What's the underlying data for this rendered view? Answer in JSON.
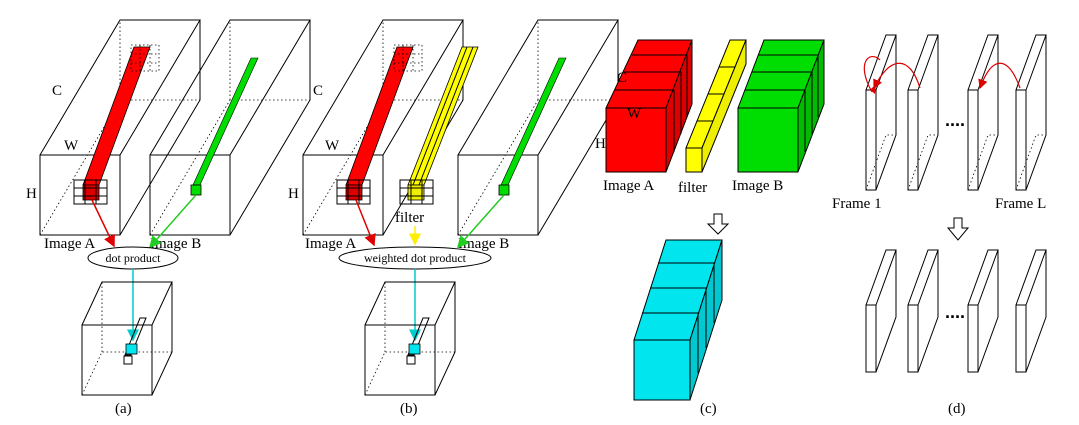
{
  "panel_a": {
    "label_c": "C",
    "label_w": "W",
    "label_h": "H",
    "image_a": "Image A",
    "image_b": "Image B",
    "operation": "dot product",
    "caption": "(a)"
  },
  "panel_b": {
    "label_c": "C",
    "label_w": "W",
    "label_h": "H",
    "image_a": "Image A",
    "filter": "filter",
    "image_b": "Image B",
    "operation": "weighted dot product",
    "caption": "(b)"
  },
  "panel_c": {
    "label_c": "C",
    "label_w": "W",
    "label_h": "H",
    "image_a": "Image A",
    "filter": "filter",
    "image_b": "Image B",
    "caption": "(c)"
  },
  "panel_d": {
    "frame_first": "Frame 1",
    "frame_last": "Frame L",
    "ellipsis": "....",
    "caption": "(d)"
  },
  "colors": {
    "image_a_feature": "#ff0000",
    "image_b_feature": "#00dd00",
    "filter": "#ffff00",
    "result": "#00e5ee"
  },
  "icons": {
    "down_arrow": "hollow-down-arrow-icon"
  }
}
